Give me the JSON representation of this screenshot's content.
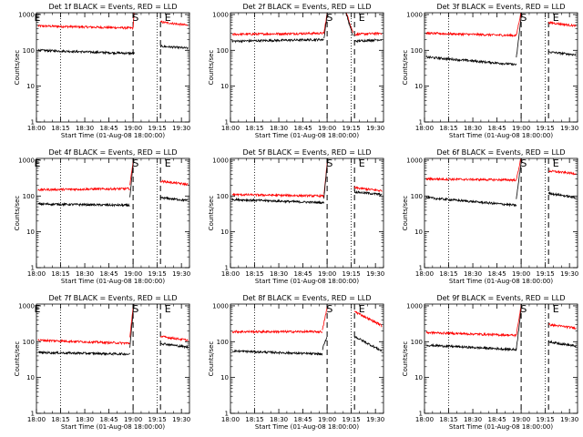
{
  "figure": {
    "axis_title_prefix": "Det",
    "title_suffix": "f BLACK = Events, RED = LLD",
    "ylabel": "Counts/sec",
    "xlabel": "Start Time (01-Aug-08 18:00:00)",
    "ytick_labels": [
      "1",
      "10",
      "100",
      "1000"
    ],
    "xtick_labels": [
      "18:00",
      "18:15",
      "18:30",
      "18:45",
      "19:00",
      "19:15",
      "19:30"
    ],
    "colors": {
      "events": "#000000",
      "lld": "#ff0000",
      "axes": "#000000"
    }
  },
  "chart_data": [
    {
      "type": "line",
      "title": "Det 1f BLACK = Events, RED = LLD",
      "det": "1",
      "ylog": true,
      "ylim": [
        1,
        1000
      ],
      "xlim_min": [
        0,
        95
      ],
      "markers": [
        {
          "t": 0,
          "label": "E"
        },
        {
          "t": 61,
          "label": "S"
        },
        {
          "t": 81,
          "label": "E"
        }
      ],
      "vlines_dotted": [
        15,
        75
      ],
      "vlines_dashed": [
        60,
        77
      ],
      "segments": [
        {
          "t0": 1,
          "t1": 60,
          "events": [
            100,
            82
          ],
          "lld": [
            480,
            420
          ]
        },
        {
          "t0": 60,
          "t1": 61,
          "events": [
            82,
            82
          ],
          "lld": [
            420,
            2000
          ]
        },
        {
          "t0": 77,
          "t1": 94,
          "events": [
            130,
            115
          ],
          "lld": [
            620,
            500
          ]
        }
      ]
    },
    {
      "type": "line",
      "title": "Det 2f BLACK = Events, RED = LLD",
      "det": "2",
      "ylog": true,
      "ylim": [
        1,
        1000
      ],
      "xlim_min": [
        0,
        95
      ],
      "markers": [
        {
          "t": 61,
          "label": "S"
        },
        {
          "t": 81,
          "label": "E"
        }
      ],
      "vlines_dotted": [
        15,
        75
      ],
      "vlines_dashed": [
        60,
        77
      ],
      "segments": [
        {
          "t0": 1,
          "t1": 58,
          "events": [
            180,
            200
          ],
          "lld": [
            280,
            300
          ]
        },
        {
          "t0": 58,
          "t1": 61,
          "events": [
            210,
            2000
          ],
          "lld": [
            300,
            2000
          ]
        },
        {
          "t0": 64,
          "t1": 70,
          "events": [
            2000,
            2000
          ],
          "lld": [
            2000,
            2000
          ]
        },
        {
          "t0": 70,
          "t1": 76,
          "events": [
            2000,
            250
          ],
          "lld": [
            2000,
            320
          ]
        },
        {
          "t0": 77,
          "t1": 94,
          "events": [
            180,
            200
          ],
          "lld": [
            280,
            300
          ]
        }
      ]
    },
    {
      "type": "line",
      "title": "Det 3f BLACK = Events, RED = LLD",
      "det": "3",
      "ylog": true,
      "ylim": [
        1,
        1000
      ],
      "xlim_min": [
        0,
        95
      ],
      "markers": [
        {
          "t": 61,
          "label": "S"
        },
        {
          "t": 81,
          "label": "E"
        }
      ],
      "vlines_dotted": [
        15,
        75
      ],
      "vlines_dashed": [
        60,
        77
      ],
      "segments": [
        {
          "t0": 1,
          "t1": 57,
          "events": [
            65,
            40
          ],
          "lld": [
            300,
            260
          ]
        },
        {
          "t0": 57,
          "t1": 61,
          "events": [
            60,
            2000
          ],
          "lld": [
            260,
            2000
          ]
        },
        {
          "t0": 77,
          "t1": 94,
          "events": [
            90,
            75
          ],
          "lld": [
            600,
            480
          ]
        }
      ]
    },
    {
      "type": "line",
      "title": "Det 4f BLACK = Events, RED = LLD",
      "det": "4",
      "ylog": true,
      "ylim": [
        1,
        1000
      ],
      "xlim_min": [
        0,
        95
      ],
      "markers": [
        {
          "t": 0,
          "label": "E"
        },
        {
          "t": 61,
          "label": "S"
        },
        {
          "t": 81,
          "label": "E"
        }
      ],
      "vlines_dotted": [
        15,
        75
      ],
      "vlines_dashed": [
        60,
        77
      ],
      "segments": [
        {
          "t0": 1,
          "t1": 58,
          "events": [
            60,
            55
          ],
          "lld": [
            150,
            160
          ]
        },
        {
          "t0": 58,
          "t1": 61,
          "events": [
            90,
            2000
          ],
          "lld": [
            200,
            2000
          ]
        },
        {
          "t0": 77,
          "t1": 94,
          "events": [
            90,
            75
          ],
          "lld": [
            260,
            210
          ]
        }
      ]
    },
    {
      "type": "line",
      "title": "Det 5f BLACK = Events, RED = LLD",
      "det": "5",
      "ylog": true,
      "ylim": [
        1,
        1000
      ],
      "xlim_min": [
        0,
        95
      ],
      "markers": [
        {
          "t": 61,
          "label": "S"
        },
        {
          "t": 81,
          "label": "E"
        }
      ],
      "vlines_dotted": [
        15,
        75
      ],
      "vlines_dashed": [
        60,
        77
      ],
      "segments": [
        {
          "t0": 1,
          "t1": 58,
          "events": [
            80,
            65
          ],
          "lld": [
            110,
            100
          ]
        },
        {
          "t0": 58,
          "t1": 61,
          "events": [
            90,
            2000
          ],
          "lld": [
            110,
            2000
          ]
        },
        {
          "t0": 77,
          "t1": 94,
          "events": [
            130,
            110
          ],
          "lld": [
            170,
            140
          ]
        }
      ]
    },
    {
      "type": "line",
      "title": "Det 6f BLACK = Events, RED = LLD",
      "det": "6",
      "ylog": true,
      "ylim": [
        1,
        1000
      ],
      "xlim_min": [
        0,
        95
      ],
      "markers": [
        {
          "t": 61,
          "label": "S"
        },
        {
          "t": 81,
          "label": "E"
        }
      ],
      "vlines_dotted": [
        15,
        75
      ],
      "vlines_dashed": [
        60,
        77
      ],
      "segments": [
        {
          "t0": 1,
          "t1": 57,
          "events": [
            90,
            55
          ],
          "lld": [
            300,
            280
          ]
        },
        {
          "t0": 57,
          "t1": 61,
          "events": [
            80,
            2000
          ],
          "lld": [
            280,
            2000
          ]
        },
        {
          "t0": 77,
          "t1": 94,
          "events": [
            120,
            90
          ],
          "lld": [
            500,
            420
          ]
        }
      ]
    },
    {
      "type": "line",
      "title": "Det 7f BLACK = Events, RED = LLD",
      "det": "7",
      "ylog": true,
      "ylim": [
        1,
        1000
      ],
      "xlim_min": [
        0,
        95
      ],
      "markers": [
        {
          "t": 0,
          "label": "E"
        },
        {
          "t": 61,
          "label": "S"
        },
        {
          "t": 81,
          "label": "E"
        }
      ],
      "vlines_dotted": [
        15,
        75
      ],
      "vlines_dashed": [
        60,
        77
      ],
      "segments": [
        {
          "t0": 1,
          "t1": 58,
          "events": [
            50,
            45
          ],
          "lld": [
            110,
            90
          ]
        },
        {
          "t0": 58,
          "t1": 61,
          "events": [
            70,
            2000
          ],
          "lld": [
            140,
            2000
          ]
        },
        {
          "t0": 77,
          "t1": 94,
          "events": [
            90,
            70
          ],
          "lld": [
            140,
            110
          ]
        }
      ]
    },
    {
      "type": "line",
      "title": "Det 8f BLACK = Events, RED = LLD",
      "det": "8",
      "ylog": true,
      "ylim": [
        1,
        1000
      ],
      "xlim_min": [
        0,
        95
      ],
      "markers": [
        {
          "t": 61,
          "label": "S"
        },
        {
          "t": 81,
          "label": "E"
        }
      ],
      "vlines_dotted": [
        15,
        75
      ],
      "vlines_dashed": [
        60,
        77
      ],
      "segments": [
        {
          "t0": 1,
          "t1": 57,
          "events": [
            55,
            45
          ],
          "lld": [
            190,
            190
          ]
        },
        {
          "t0": 57,
          "t1": 60,
          "events": [
            60,
            140
          ],
          "lld": [
            200,
            900
          ]
        },
        {
          "t0": 77,
          "t1": 94,
          "events": [
            140,
            55
          ],
          "lld": [
            700,
            280
          ]
        }
      ]
    },
    {
      "type": "line",
      "title": "Det 9f BLACK = Events, RED = LLD",
      "det": "9",
      "ylog": true,
      "ylim": [
        1,
        1000
      ],
      "xlim_min": [
        0,
        95
      ],
      "markers": [
        {
          "t": 61,
          "label": "S"
        },
        {
          "t": 81,
          "label": "E"
        }
      ],
      "vlines_dotted": [
        15,
        75
      ],
      "vlines_dashed": [
        60,
        77
      ],
      "segments": [
        {
          "t0": 1,
          "t1": 57,
          "events": [
            80,
            60
          ],
          "lld": [
            180,
            150
          ]
        },
        {
          "t0": 57,
          "t1": 61,
          "events": [
            60,
            2000
          ],
          "lld": [
            150,
            2000
          ]
        },
        {
          "t0": 77,
          "t1": 94,
          "events": [
            100,
            75
          ],
          "lld": [
            300,
            240
          ]
        }
      ]
    }
  ]
}
